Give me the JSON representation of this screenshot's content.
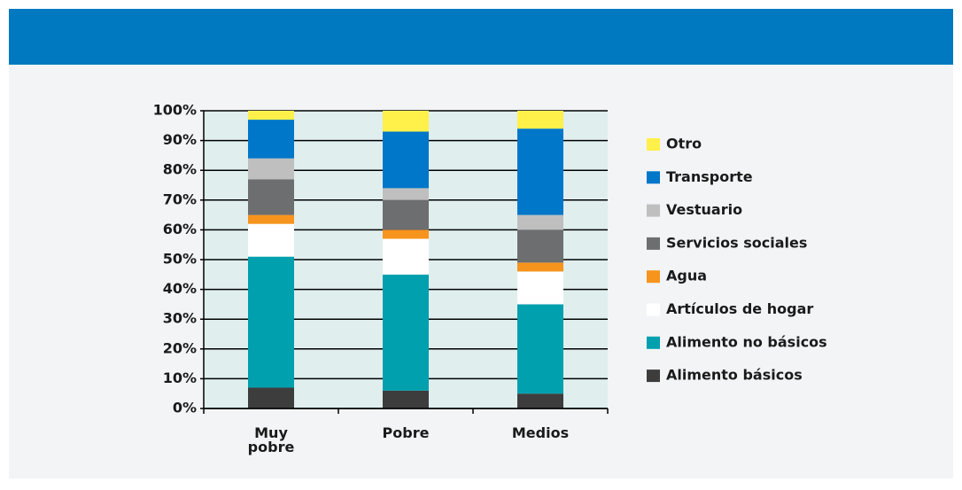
{
  "chart_data": {
    "type": "stacked_bar",
    "categories": [
      "Muy pobre",
      "Pobre",
      "Medios"
    ],
    "series": [
      {
        "name": "Alimento básicos",
        "color": "#3d3d3d",
        "values": [
          7,
          6,
          5
        ]
      },
      {
        "name": "Alimento no básicos",
        "color": "#00a0af",
        "values": [
          44,
          39,
          30
        ]
      },
      {
        "name": "Artículos de hogar",
        "color": "#ffffff",
        "values": [
          11,
          12,
          11
        ]
      },
      {
        "name": "Agua",
        "color": "#f7941d",
        "values": [
          3,
          3,
          3
        ]
      },
      {
        "name": "Servicios sociales",
        "color": "#6d6e70",
        "values": [
          12,
          10,
          11
        ]
      },
      {
        "name": "Vestuario",
        "color": "#bfbfbf",
        "values": [
          7,
          4,
          5
        ]
      },
      {
        "name": "Transporte",
        "color": "#0077c8",
        "values": [
          13,
          19,
          29
        ]
      },
      {
        "name": "Otro",
        "color": "#fff04a",
        "values": [
          3,
          7,
          6
        ]
      }
    ],
    "ylim": [
      0,
      100
    ],
    "yticks": [
      {
        "value": 0,
        "label": "0%"
      },
      {
        "value": 10,
        "label": "10%"
      },
      {
        "value": 20,
        "label": "20%"
      },
      {
        "value": 30,
        "label": "30%"
      },
      {
        "value": 40,
        "label": "40%"
      },
      {
        "value": 50,
        "label": "50%"
      },
      {
        "value": 60,
        "label": "60%"
      },
      {
        "value": 70,
        "label": "70%"
      },
      {
        "value": 80,
        "label": "80%"
      },
      {
        "value": 90,
        "label": "90%"
      },
      {
        "value": 100,
        "label": "100%"
      }
    ],
    "grid": true
  }
}
